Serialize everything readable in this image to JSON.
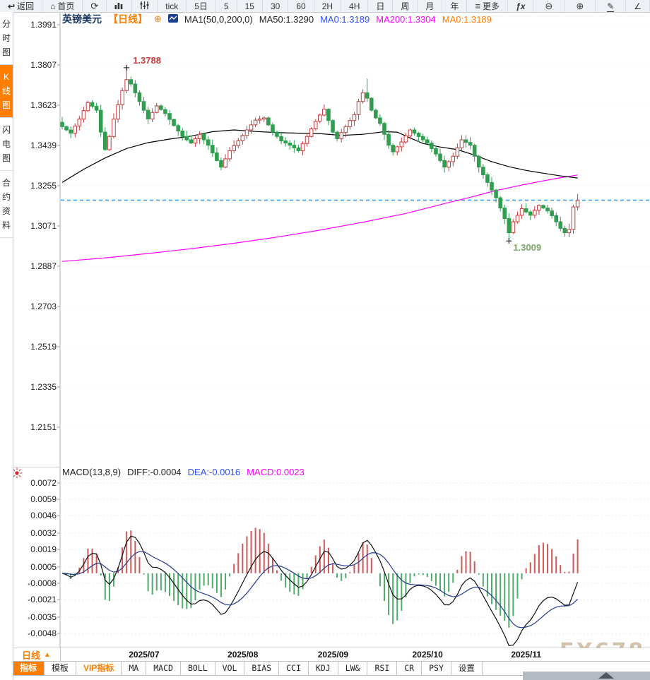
{
  "toolbar": {
    "items": [
      {
        "name": "back-button",
        "icon": "back-arrow-icon",
        "label": "返回"
      },
      {
        "name": "home-button",
        "icon": "home-icon",
        "label": "首页"
      },
      {
        "name": "refresh-button",
        "icon": "refresh-icon",
        "label": ""
      },
      {
        "name": "kline-chart-button",
        "icon": "bar-chart-icon",
        "label": ""
      },
      {
        "name": "indicator-sliders-button",
        "icon": "sliders-icon",
        "label": ""
      },
      {
        "name": "interval-tick-button",
        "label": "tick"
      },
      {
        "name": "interval-5d-button",
        "label": "5日"
      },
      {
        "name": "interval-5m-button",
        "label": "5"
      },
      {
        "name": "interval-15m-button",
        "label": "15"
      },
      {
        "name": "interval-30m-button",
        "label": "30"
      },
      {
        "name": "interval-60m-button",
        "label": "60"
      },
      {
        "name": "interval-2h-button",
        "label": "2H"
      },
      {
        "name": "interval-4h-button",
        "label": "4H"
      },
      {
        "name": "interval-day-button",
        "label": "日"
      },
      {
        "name": "interval-week-button",
        "label": "周"
      },
      {
        "name": "interval-month-button",
        "label": "月"
      },
      {
        "name": "interval-year-button",
        "label": "年"
      },
      {
        "name": "more-button",
        "icon": "menu-icon",
        "label": "更多"
      },
      {
        "name": "formula-button",
        "label": "ƒx",
        "fx": true
      },
      {
        "name": "zoom-out-button",
        "icon": "zoom-out-icon",
        "label": "",
        "wide": true
      },
      {
        "name": "zoom-in-button",
        "icon": "zoom-in-icon",
        "label": "",
        "wide": true
      },
      {
        "name": "draw-button",
        "icon": "pencil-icon",
        "label": "",
        "wide": true
      },
      {
        "name": "angle-tool-button",
        "icon": "angle-icon",
        "label": ""
      }
    ]
  },
  "sidebar": {
    "items": [
      {
        "name": "sidebar-item-time-chart",
        "label": "分时图",
        "active": false
      },
      {
        "name": "sidebar-item-kline-chart",
        "label": "K线图",
        "active": true
      },
      {
        "name": "sidebar-item-lightning-chart",
        "label": "闪电图",
        "active": false
      },
      {
        "name": "sidebar-item-contract-info",
        "label": "合约资料",
        "active": false
      }
    ]
  },
  "chart_header": {
    "symbol": "英镑美元",
    "period": "【日线】",
    "plus_icon": "⊕",
    "ma_config": "MA1(50,0,200,0)",
    "ma50": "MA50:1.3290",
    "ma0_blue": "MA0:1.3189",
    "ma200": "MA200:1.3304",
    "ma0_orange": "MA0:1.3189"
  },
  "macd_header": {
    "formula": "MACD(13,8,9)",
    "diff": "DIFF:-0.0004",
    "dea": "DEA:-0.0016",
    "macd": "MACD:0.0023"
  },
  "bottom": {
    "period_label": "日线",
    "period_arrow": "▲",
    "tabs": [
      {
        "name": "tab-indicator",
        "label": "指标",
        "style": "active"
      },
      {
        "name": "tab-template",
        "label": "模板",
        "style": "plain"
      },
      {
        "name": "tab-vip-indicator",
        "label": "VIP指标",
        "style": "vip"
      },
      {
        "name": "tab-ma",
        "label": "MA",
        "style": "boxed"
      },
      {
        "name": "tab-macd",
        "label": "MACD",
        "style": "boxed"
      },
      {
        "name": "tab-boll",
        "label": "BOLL",
        "style": "boxed"
      },
      {
        "name": "tab-vol",
        "label": "VOL",
        "style": "boxed"
      },
      {
        "name": "tab-bias",
        "label": "BIAS",
        "style": "boxed"
      },
      {
        "name": "tab-cci",
        "label": "CCI",
        "style": "boxed"
      },
      {
        "name": "tab-kdj",
        "label": "KDJ",
        "style": "boxed"
      },
      {
        "name": "tab-lw",
        "label": "LW&",
        "style": "boxed"
      },
      {
        "name": "tab-rsi",
        "label": "RSI",
        "style": "boxed"
      },
      {
        "name": "tab-cr",
        "label": "CR",
        "style": "boxed"
      },
      {
        "name": "tab-psy",
        "label": "PSY",
        "style": "boxed"
      },
      {
        "name": "tab-settings",
        "label": "设置",
        "style": "boxed"
      }
    ]
  },
  "watermark": "FX678",
  "colors": {
    "accent": "#ff7e00",
    "up": "#c43c3c",
    "down": "#2f9e4f",
    "ma50": "#000000",
    "ma200": "#ff00ff",
    "last_price_line": "#1e90ff",
    "diff_line": "#101010",
    "dea_line": "#243a8c",
    "high_label": "#c43c3c",
    "low_label": "#7fa868",
    "grid": "#ececec",
    "axis_text": "#222222"
  },
  "chart_data": [
    {
      "type": "candlestick",
      "title": "英镑美元 日线 (GBP/USD daily)",
      "y_ticks": [
        1.3991,
        1.3807,
        1.3623,
        1.3439,
        1.3255,
        1.3071,
        1.2887,
        1.2703,
        1.2519,
        1.2335,
        1.2151
      ],
      "x_ticks": [
        {
          "label": "2025/07",
          "index": 15
        },
        {
          "label": "2025/08",
          "index": 38
        },
        {
          "label": "2025/09",
          "index": 59
        },
        {
          "label": "2025/10",
          "index": 81
        },
        {
          "label": "2025/11",
          "index": 104
        }
      ],
      "first_open": 1.3545,
      "closes": [
        1.3525,
        1.351,
        1.3495,
        1.3528,
        1.356,
        1.3598,
        1.3635,
        1.3618,
        1.36,
        1.35,
        1.342,
        1.348,
        1.356,
        1.3625,
        1.369,
        1.374,
        1.372,
        1.368,
        1.364,
        1.36,
        1.356,
        1.359,
        1.362,
        1.3603,
        1.3585,
        1.3558,
        1.353,
        1.3505,
        1.348,
        1.3465,
        1.345,
        1.347,
        1.349,
        1.3465,
        1.344,
        1.3405,
        1.337,
        1.334,
        1.3378,
        1.3415,
        1.3438,
        1.346,
        1.3485,
        1.351,
        1.3533,
        1.3555,
        1.356,
        1.3565,
        1.3533,
        1.35,
        1.348,
        1.346,
        1.345,
        1.344,
        1.3428,
        1.3415,
        1.3448,
        1.348,
        1.3515,
        1.355,
        1.3578,
        1.3605,
        1.3553,
        1.35,
        1.347,
        1.3498,
        1.3525,
        1.3553,
        1.358,
        1.364,
        1.368,
        1.3655,
        1.36,
        1.3565,
        1.354,
        1.349,
        1.344,
        1.341,
        1.3433,
        1.3455,
        1.3483,
        1.351,
        1.3495,
        1.348,
        1.3465,
        1.345,
        1.3425,
        1.34,
        1.337,
        1.334,
        1.3365,
        1.339,
        1.3428,
        1.3465,
        1.3453,
        1.344,
        1.339,
        1.334,
        1.3305,
        1.327,
        1.3235,
        1.32,
        1.3153,
        1.3105,
        1.304,
        1.309,
        1.312,
        1.315,
        1.3135,
        1.312,
        1.3143,
        1.3165,
        1.3153,
        1.314,
        1.3118,
        1.309,
        1.306,
        1.304,
        1.3055,
        1.3158,
        1.3189
      ],
      "wick_overrides": {
        "15": {
          "high": 1.3788
        },
        "71": {
          "high": 1.3745
        },
        "104": {
          "low": 1.3009
        },
        "117": {
          "low": 1.3022
        },
        "120": {
          "high": 1.3217
        }
      },
      "annotations": [
        {
          "text": "1.3788",
          "index": 15,
          "position": "high"
        },
        {
          "text": "1.3009",
          "index": 104,
          "position": "low"
        }
      ],
      "last_price": 1.3189,
      "ma50": [
        [
          0,
          1.327
        ],
        [
          5,
          1.333
        ],
        [
          10,
          1.3382
        ],
        [
          15,
          1.3425
        ],
        [
          20,
          1.3452
        ],
        [
          25,
          1.3468
        ],
        [
          30,
          1.3482
        ],
        [
          35,
          1.3502
        ],
        [
          40,
          1.351
        ],
        [
          45,
          1.3503
        ],
        [
          50,
          1.3498
        ],
        [
          55,
          1.3495
        ],
        [
          60,
          1.3493
        ],
        [
          65,
          1.3485
        ],
        [
          70,
          1.349
        ],
        [
          75,
          1.3502
        ],
        [
          78,
          1.35
        ],
        [
          81,
          1.3473
        ],
        [
          84,
          1.3448
        ],
        [
          88,
          1.3432
        ],
        [
          92,
          1.342
        ],
        [
          96,
          1.3395
        ],
        [
          100,
          1.3365
        ],
        [
          104,
          1.3342
        ],
        [
          108,
          1.3325
        ],
        [
          112,
          1.3312
        ],
        [
          116,
          1.33
        ],
        [
          120,
          1.329
        ]
      ],
      "ma200": [
        [
          0,
          1.2909
        ],
        [
          10,
          1.2925
        ],
        [
          20,
          1.2945
        ],
        [
          30,
          1.2967
        ],
        [
          40,
          1.2992
        ],
        [
          50,
          1.302
        ],
        [
          60,
          1.3052
        ],
        [
          70,
          1.3088
        ],
        [
          80,
          1.3128
        ],
        [
          90,
          1.3178
        ],
        [
          95,
          1.3202
        ],
        [
          100,
          1.3228
        ],
        [
          105,
          1.325
        ],
        [
          110,
          1.327
        ],
        [
          115,
          1.3288
        ],
        [
          120,
          1.3304
        ]
      ]
    },
    {
      "type": "macd",
      "params": [
        13,
        8,
        9
      ],
      "last_diff": -0.0004,
      "last_dea": -0.0016,
      "last_macd": 0.0023,
      "y_ticks": [
        0.0072,
        0.0059,
        0.0046,
        0.0032,
        0.0019,
        0.0005,
        -0.0008,
        -0.0021,
        -0.0035,
        -0.0048
      ],
      "source": "DIFF=EMA(8)-EMA(13) of closes, DEA=EMA(9) of DIFF, bar=2*(DIFF-DEA)"
    }
  ]
}
